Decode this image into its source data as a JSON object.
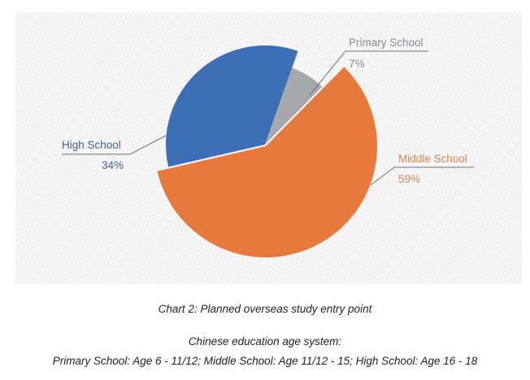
{
  "chart_data": {
    "type": "pie",
    "title": "Chart 2: Planned overseas study entry point",
    "slices": [
      {
        "label": "High School",
        "value": 34,
        "value_label": "34%",
        "color": "#3d6fb6",
        "label_color": "#3f6596"
      },
      {
        "label": "Primary School",
        "value": 7,
        "value_label": "7%",
        "color": "#a6a8ab",
        "label_color": "#8a8d91"
      },
      {
        "label": "Middle School",
        "value": 59,
        "value_label": "59%",
        "color": "#e8793c",
        "label_color": "#df8550"
      }
    ],
    "exploded": true
  },
  "captions": {
    "title": "Chart 2: Planned overseas study entry point",
    "note_heading": "Chinese education age system:",
    "note_text": "Primary School: Age 6 - 11/12;  Middle School: Age 11/12 - 15;   High School: Age 16 - 18"
  }
}
